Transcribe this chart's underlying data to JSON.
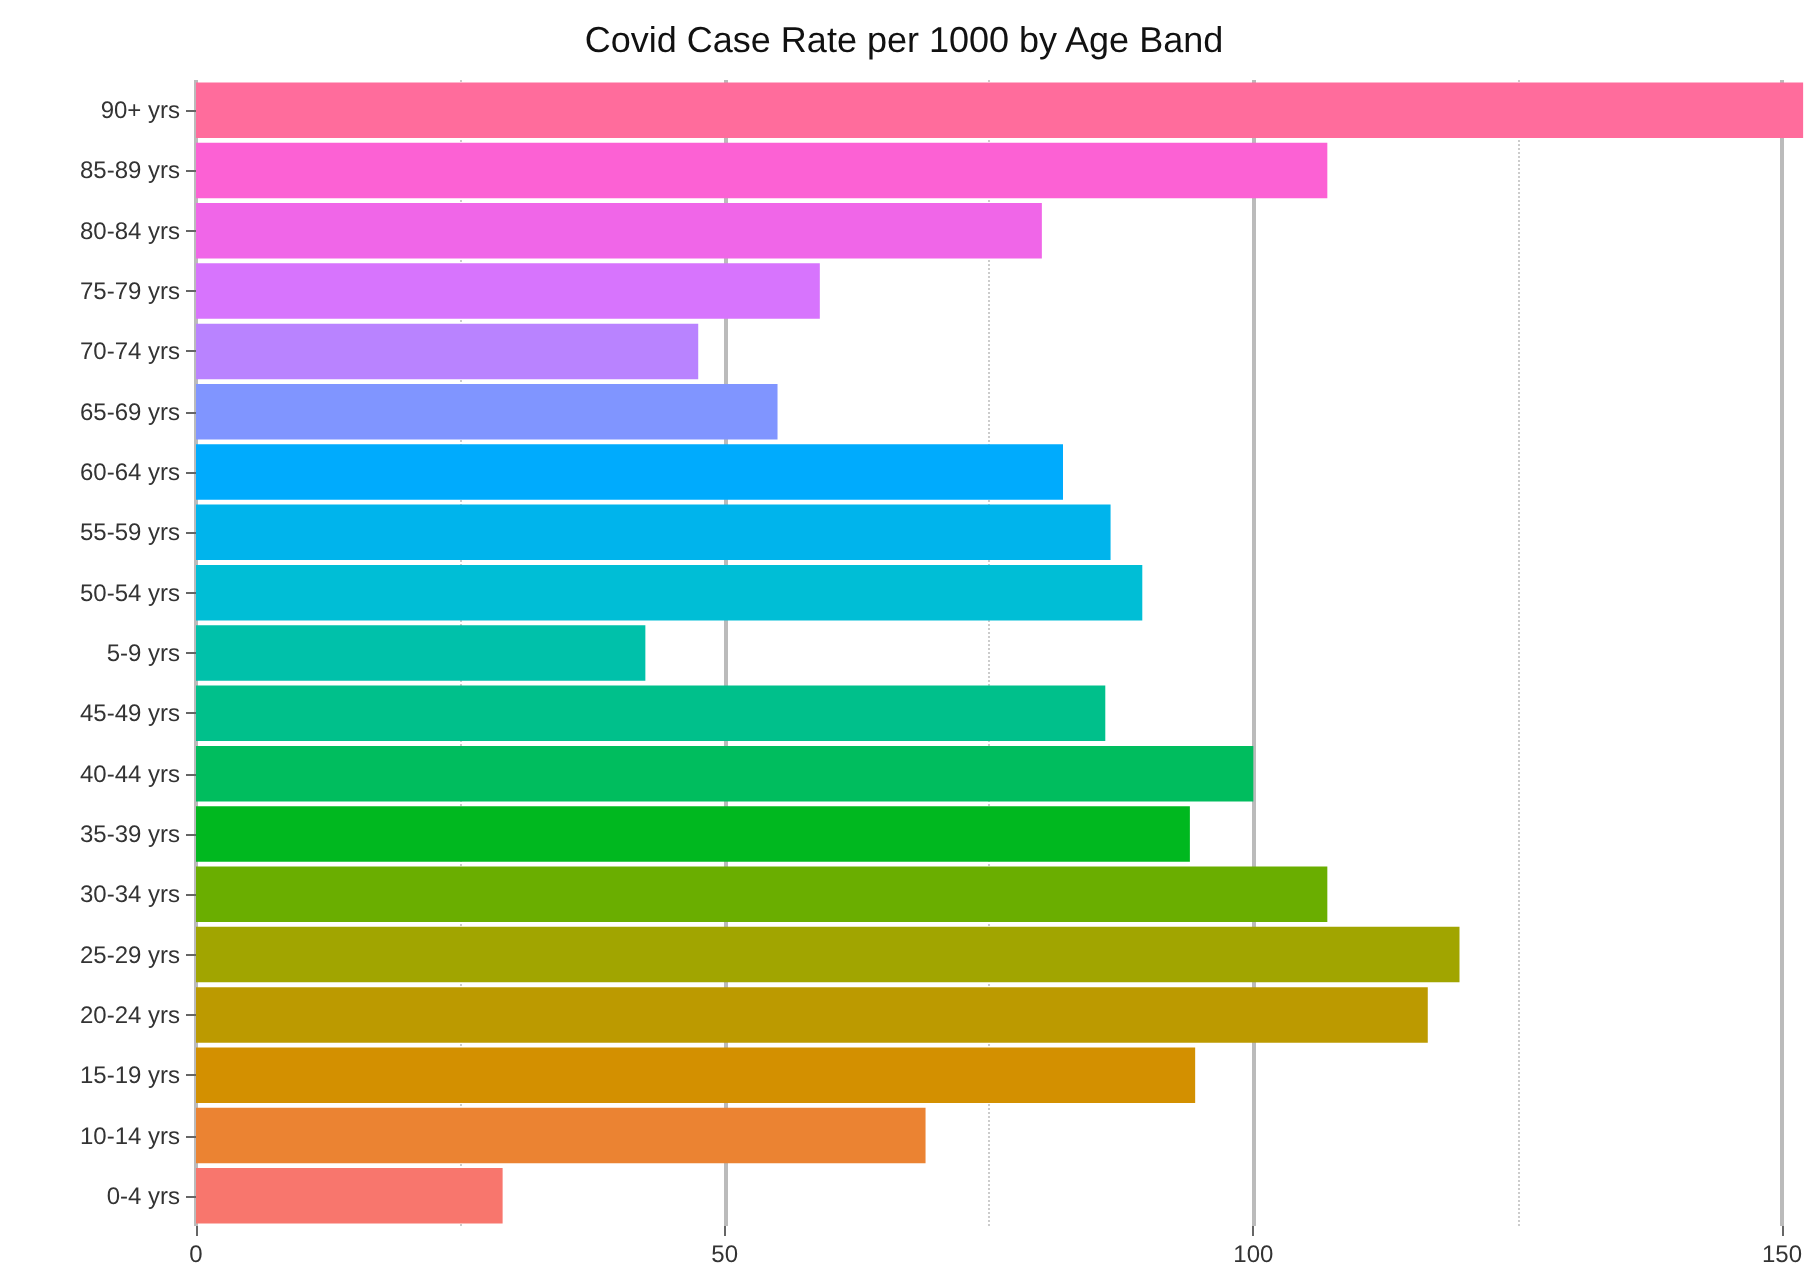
{
  "chart_data": {
    "type": "bar",
    "orientation": "horizontal",
    "title": "Covid Case Rate per 1000 by Age Band",
    "categories": [
      "90+ yrs",
      "85-89 yrs",
      "80-84 yrs",
      "75-79 yrs",
      "70-74 yrs",
      "65-69 yrs",
      "60-64 yrs",
      "55-59 yrs",
      "50-54 yrs",
      "5-9 yrs",
      "45-49 yrs",
      "40-44 yrs",
      "35-39 yrs",
      "30-34 yrs",
      "25-29 yrs",
      "20-24 yrs",
      "15-19 yrs",
      "10-14 yrs",
      "0-4 yrs"
    ],
    "values": [
      152,
      107,
      80,
      59,
      47.5,
      55,
      82,
      86.5,
      89.5,
      42.5,
      86,
      100,
      94,
      107,
      119.5,
      116.5,
      94.5,
      69,
      29
    ],
    "colors": [
      "#ff6c9c",
      "#fc61d4",
      "#f066e8",
      "#d774fd",
      "#b983ff",
      "#8095ff",
      "#00abfd",
      "#00b4ec",
      "#00bed6",
      "#00c1aa",
      "#00c08b",
      "#00bd5e",
      "#00b81f",
      "#6aae00",
      "#a1a500",
      "#bc9a00",
      "#d39000",
      "#eb8332",
      "#f8766d"
    ],
    "xlim": [
      0,
      152
    ],
    "xticks": [
      0,
      50,
      100,
      150
    ],
    "grid": "x"
  }
}
